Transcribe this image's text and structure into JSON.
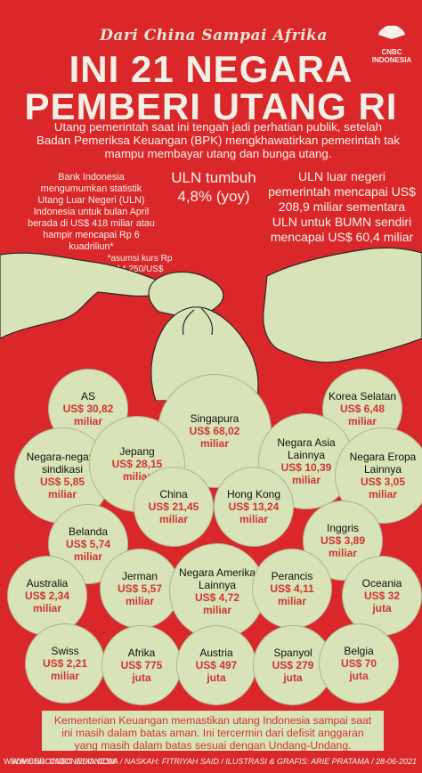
{
  "header": {
    "top_script": "Dari China Sampai Afrika",
    "title_line_1": "INI 21 NEGARA",
    "title_line_2": "PEMBERI UTANG RI",
    "brand": "CNBC INDONESIA"
  },
  "intro": {
    "paragraph": "Utang pemerintah saat ini tengah jadi perhatian publik, setelah Badan Pemeriksa Keuangan (BPK) mengkhawatirkan pemerintah tak mampu membayar utang dan bunga utang."
  },
  "notes": {
    "left": "Bank Indonesia mengumumkan statistik Utang Luar Negeri (ULN) Indonesia untuk bulan April berada di US$ 418 miliar atau hampir mencapai Rp 6 kuadriliun*",
    "left_footnote": "*asumsi kurs Rp 14.250/US$",
    "growth": "ULN tumbuh 4,8% (yoy)",
    "right": "ULN luar negeri pemerintah mencapai US$ 208,9 miliar sementara ULN untuk BUMN sendiri mencapai US$ 60,4 miliar"
  },
  "countries": [
    {
      "name": "AS",
      "value": "US$ 30,82",
      "unit": "miliar"
    },
    {
      "name": "Singapura",
      "value": "US$ 68,02",
      "unit": "miliar"
    },
    {
      "name": "Korea Selatan",
      "value": "US$ 6,48",
      "unit": "miliar"
    },
    {
      "name": "Negara-negara sindikasi",
      "value": "US$ 5,85",
      "unit": "miliar"
    },
    {
      "name": "Jepang",
      "value": "US$ 28,15",
      "unit": "miliar"
    },
    {
      "name": "Negara Asia Lainnya",
      "value": "US$ 10,39",
      "unit": "miliar"
    },
    {
      "name": "Negara Eropa Lainnya",
      "value": "US$ 3,05",
      "unit": "miliar"
    },
    {
      "name": "China",
      "value": "US$ 21,45",
      "unit": "miliar"
    },
    {
      "name": "Hong Kong",
      "value": "US$ 13,24",
      "unit": "miliar"
    },
    {
      "name": "Belanda",
      "value": "US$ 5,74",
      "unit": "miliar"
    },
    {
      "name": "Inggris",
      "value": "US$ 3,89",
      "unit": "miliar"
    },
    {
      "name": "Australia",
      "value": "US$ 2,34",
      "unit": "miliar"
    },
    {
      "name": "Jerman",
      "value": "US$ 5,57",
      "unit": "miliar"
    },
    {
      "name": "Negara Amerika Lainnya",
      "value": "US$ 4,72",
      "unit": "miliar"
    },
    {
      "name": "Perancis",
      "value": "US$ 4,11",
      "unit": "miliar"
    },
    {
      "name": "Oceania",
      "value": "US$ 32",
      "unit": "juta"
    },
    {
      "name": "Swiss",
      "value": "US$ 2,21",
      "unit": "miliar"
    },
    {
      "name": "Afrika",
      "value": "US$ 775",
      "unit": "juta"
    },
    {
      "name": "Austria",
      "value": "US$ 497",
      "unit": "juta"
    },
    {
      "name": "Spanyol",
      "value": "US$ 279",
      "unit": "juta"
    },
    {
      "name": "Belgia",
      "value": "US$ 70",
      "unit": "juta"
    }
  ],
  "footer": {
    "message": "Kementerian Keuangan memastikan utang Indonesia sampai saat ini masih dalam batas aman. Ini tercermin dari defisit anggaran yang masih dalam batas sesuai dengan Undang-Undang.",
    "site": "WWW.CNBCINDONESIA.COM",
    "source": "SUMBER: CNBC INDONESIA / NASKAH: FITRIYAH SAID / ILUSTRASI & GRAFIS: ARIE PRATAMA / 28-06-2021"
  },
  "colors": {
    "background": "#d9272a",
    "bubble": "#d8e3b7",
    "value_red": "#d23435",
    "text_light": "#f6f3ea"
  }
}
